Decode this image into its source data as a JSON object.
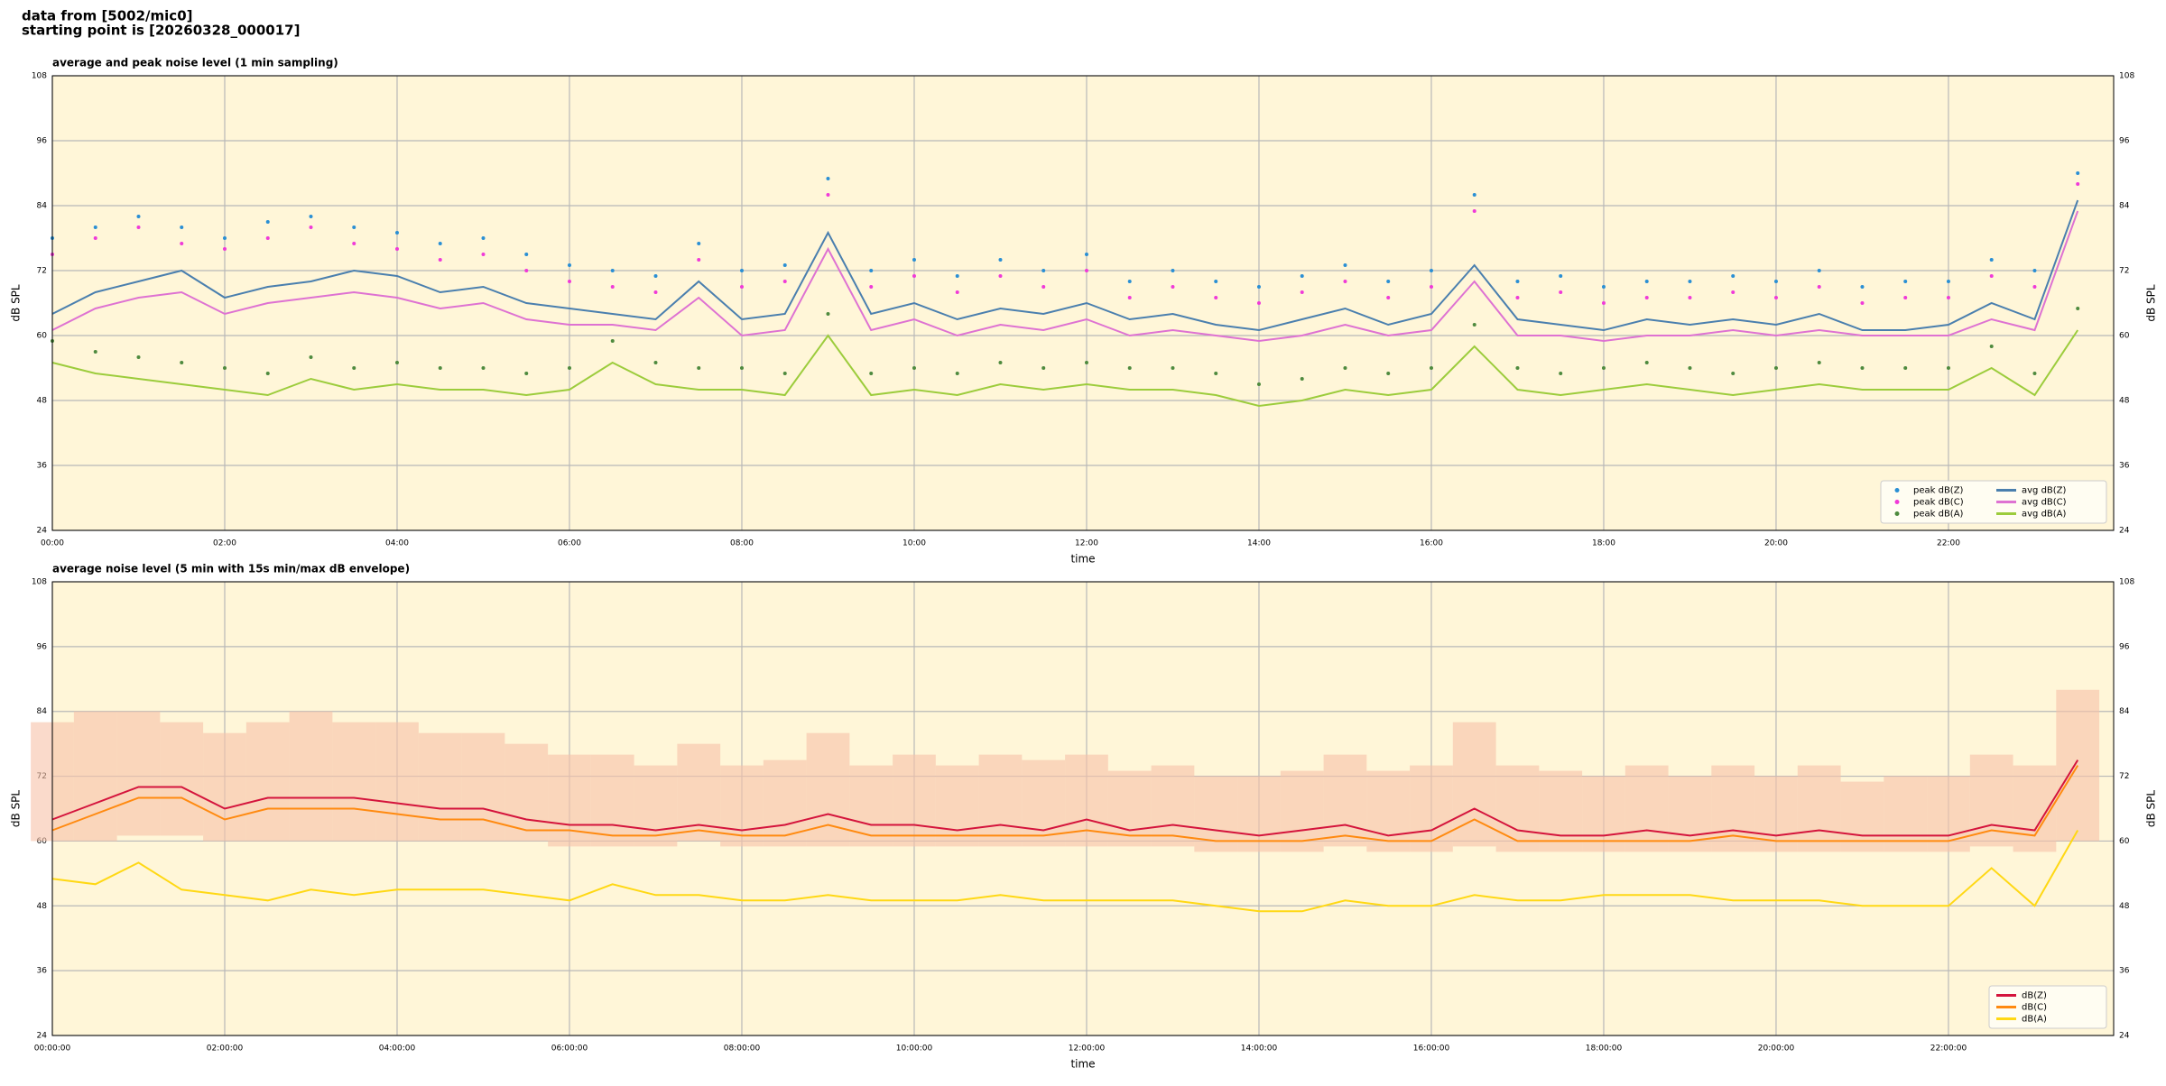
{
  "header": {
    "line1": "data from [5002/mic0]",
    "line2": "starting point is [20260328_000017]"
  },
  "chart_data": [
    {
      "type": "line",
      "title": "average and peak noise level (1 min sampling)",
      "xlabel": "time",
      "ylabel": "dB SPL",
      "x": [
        "00:00",
        "00:30",
        "01:00",
        "01:30",
        "02:00",
        "02:30",
        "03:00",
        "03:30",
        "04:00",
        "04:30",
        "05:00",
        "05:30",
        "06:00",
        "06:30",
        "07:00",
        "07:30",
        "08:00",
        "08:30",
        "09:00",
        "09:30",
        "10:00",
        "10:30",
        "11:00",
        "11:30",
        "12:00",
        "12:30",
        "13:00",
        "13:30",
        "14:00",
        "14:30",
        "15:00",
        "15:30",
        "16:00",
        "16:30",
        "17:00",
        "17:30",
        "18:00",
        "18:30",
        "19:00",
        "19:30",
        "20:00",
        "20:30",
        "21:00",
        "21:30",
        "22:00",
        "22:30",
        "23:00",
        "23:30"
      ],
      "xlim": [
        "00:00",
        "23:55"
      ],
      "xticks": [
        "00:00",
        "02:00",
        "04:00",
        "06:00",
        "08:00",
        "10:00",
        "12:00",
        "14:00",
        "16:00",
        "18:00",
        "20:00",
        "22:00"
      ],
      "ylim": [
        24,
        108
      ],
      "yticks": [
        24,
        36,
        48,
        60,
        72,
        84,
        96,
        108
      ],
      "grid": true,
      "legend": "lower right",
      "legend_ncol": 2,
      "series": [
        {
          "name": "peak dB(Z)",
          "style": "scatter",
          "color": "#2a8fd4",
          "values": [
            78,
            80,
            82,
            80,
            78,
            81,
            82,
            80,
            79,
            77,
            78,
            75,
            73,
            72,
            71,
            77,
            72,
            73,
            89,
            72,
            74,
            71,
            74,
            72,
            75,
            70,
            72,
            70,
            69,
            71,
            73,
            70,
            72,
            86,
            70,
            71,
            69,
            70,
            70,
            71,
            70,
            72,
            69,
            70,
            70,
            74,
            72,
            90
          ]
        },
        {
          "name": "peak dB(C)",
          "style": "scatter",
          "color": "#f03ad8",
          "values": [
            75,
            78,
            80,
            77,
            76,
            78,
            80,
            77,
            76,
            74,
            75,
            72,
            70,
            69,
            68,
            74,
            69,
            70,
            86,
            69,
            71,
            68,
            71,
            69,
            72,
            67,
            69,
            67,
            66,
            68,
            70,
            67,
            69,
            83,
            67,
            68,
            66,
            67,
            67,
            68,
            67,
            69,
            66,
            67,
            67,
            71,
            69,
            88
          ]
        },
        {
          "name": "peak dB(A)",
          "style": "scatter",
          "color": "#4e8a3e",
          "values": [
            59,
            57,
            56,
            55,
            54,
            53,
            56,
            54,
            55,
            54,
            54,
            53,
            54,
            59,
            55,
            54,
            54,
            53,
            64,
            53,
            54,
            53,
            55,
            54,
            55,
            54,
            54,
            53,
            51,
            52,
            54,
            53,
            54,
            62,
            54,
            53,
            54,
            55,
            54,
            53,
            54,
            55,
            54,
            54,
            54,
            58,
            53,
            65
          ]
        },
        {
          "name": "avg dB(Z)",
          "style": "line",
          "color": "#4a7fae",
          "values": [
            64,
            68,
            70,
            72,
            67,
            69,
            70,
            72,
            71,
            68,
            69,
            66,
            65,
            64,
            63,
            70,
            63,
            64,
            79,
            64,
            66,
            63,
            65,
            64,
            66,
            63,
            64,
            62,
            61,
            63,
            65,
            62,
            64,
            73,
            63,
            62,
            61,
            63,
            62,
            63,
            62,
            64,
            61,
            61,
            62,
            66,
            63,
            85
          ]
        },
        {
          "name": "avg dB(C)",
          "style": "line",
          "color": "#de72d2",
          "values": [
            61,
            65,
            67,
            68,
            64,
            66,
            67,
            68,
            67,
            65,
            66,
            63,
            62,
            62,
            61,
            67,
            60,
            61,
            76,
            61,
            63,
            60,
            62,
            61,
            63,
            60,
            61,
            60,
            59,
            60,
            62,
            60,
            61,
            70,
            60,
            60,
            59,
            60,
            60,
            61,
            60,
            61,
            60,
            60,
            60,
            63,
            61,
            83
          ]
        },
        {
          "name": "avg dB(A)",
          "style": "line",
          "color": "#9ccc3c",
          "values": [
            55,
            53,
            52,
            51,
            50,
            49,
            52,
            50,
            51,
            50,
            50,
            49,
            50,
            55,
            51,
            50,
            50,
            49,
            60,
            49,
            50,
            49,
            51,
            50,
            51,
            50,
            50,
            49,
            47,
            48,
            50,
            49,
            50,
            58,
            50,
            49,
            50,
            51,
            50,
            49,
            50,
            51,
            50,
            50,
            50,
            54,
            49,
            61
          ]
        }
      ]
    },
    {
      "type": "line",
      "title": "average noise level (5 min with 15s min/max dB envelope)",
      "xlabel": "time",
      "ylabel": "dB SPL",
      "x": [
        "00:00",
        "00:30",
        "01:00",
        "01:30",
        "02:00",
        "02:30",
        "03:00",
        "03:30",
        "04:00",
        "04:30",
        "05:00",
        "05:30",
        "06:00",
        "06:30",
        "07:00",
        "07:30",
        "08:00",
        "08:30",
        "09:00",
        "09:30",
        "10:00",
        "10:30",
        "11:00",
        "11:30",
        "12:00",
        "12:30",
        "13:00",
        "13:30",
        "14:00",
        "14:30",
        "15:00",
        "15:30",
        "16:00",
        "16:30",
        "17:00",
        "17:30",
        "18:00",
        "18:30",
        "19:00",
        "19:30",
        "20:00",
        "20:30",
        "21:00",
        "21:30",
        "22:00",
        "22:30",
        "23:00",
        "23:30"
      ],
      "xlim": [
        "00:00",
        "23:55"
      ],
      "xticks": [
        "00:00:00",
        "02:00:00",
        "04:00:00",
        "06:00:00",
        "08:00:00",
        "10:00:00",
        "12:00:00",
        "14:00:00",
        "16:00:00",
        "18:00:00",
        "20:00:00",
        "22:00:00"
      ],
      "ylim": [
        24,
        108
      ],
      "yticks": [
        24,
        36,
        48,
        60,
        72,
        84,
        96,
        108
      ],
      "grid": true,
      "legend": "lower right",
      "legend_ncol": 1,
      "envelope": {
        "color": "#f6c2a8",
        "upper": [
          82,
          84,
          84,
          82,
          80,
          82,
          84,
          82,
          82,
          80,
          80,
          78,
          76,
          76,
          74,
          78,
          74,
          75,
          80,
          74,
          76,
          74,
          76,
          75,
          76,
          73,
          74,
          72,
          72,
          73,
          76,
          73,
          74,
          82,
          74,
          73,
          72,
          74,
          72,
          74,
          72,
          74,
          71,
          72,
          72,
          76,
          74,
          88
        ],
        "lower": [
          60,
          60,
          61,
          61,
          60,
          60,
          60,
          60,
          60,
          60,
          60,
          60,
          59,
          59,
          59,
          60,
          59,
          59,
          59,
          59,
          59,
          59,
          59,
          59,
          59,
          59,
          59,
          58,
          58,
          58,
          59,
          58,
          58,
          59,
          58,
          58,
          58,
          58,
          58,
          58,
          58,
          58,
          58,
          58,
          58,
          59,
          58,
          60
        ]
      },
      "series": [
        {
          "name": "dB(Z)",
          "style": "line",
          "color": "#d4143c",
          "values": [
            64,
            67,
            70,
            70,
            66,
            68,
            68,
            68,
            67,
            66,
            66,
            64,
            63,
            63,
            62,
            63,
            62,
            63,
            65,
            63,
            63,
            62,
            63,
            62,
            64,
            62,
            63,
            62,
            61,
            62,
            63,
            61,
            62,
            66,
            62,
            61,
            61,
            62,
            61,
            62,
            61,
            62,
            61,
            61,
            61,
            63,
            62,
            75
          ]
        },
        {
          "name": "dB(C)",
          "style": "line",
          "color": "#ff8a10",
          "values": [
            62,
            65,
            68,
            68,
            64,
            66,
            66,
            66,
            65,
            64,
            64,
            62,
            62,
            61,
            61,
            62,
            61,
            61,
            63,
            61,
            61,
            61,
            61,
            61,
            62,
            61,
            61,
            60,
            60,
            60,
            61,
            60,
            60,
            64,
            60,
            60,
            60,
            60,
            60,
            61,
            60,
            60,
            60,
            60,
            60,
            62,
            61,
            74
          ]
        },
        {
          "name": "dB(A)",
          "style": "line",
          "color": "#ffd814",
          "values": [
            53,
            52,
            56,
            51,
            50,
            49,
            51,
            50,
            51,
            51,
            51,
            50,
            49,
            52,
            50,
            50,
            49,
            49,
            50,
            49,
            49,
            49,
            50,
            49,
            49,
            49,
            49,
            48,
            47,
            47,
            49,
            48,
            48,
            50,
            49,
            49,
            50,
            50,
            50,
            49,
            49,
            49,
            48,
            48,
            48,
            55,
            48,
            62
          ]
        }
      ]
    }
  ]
}
